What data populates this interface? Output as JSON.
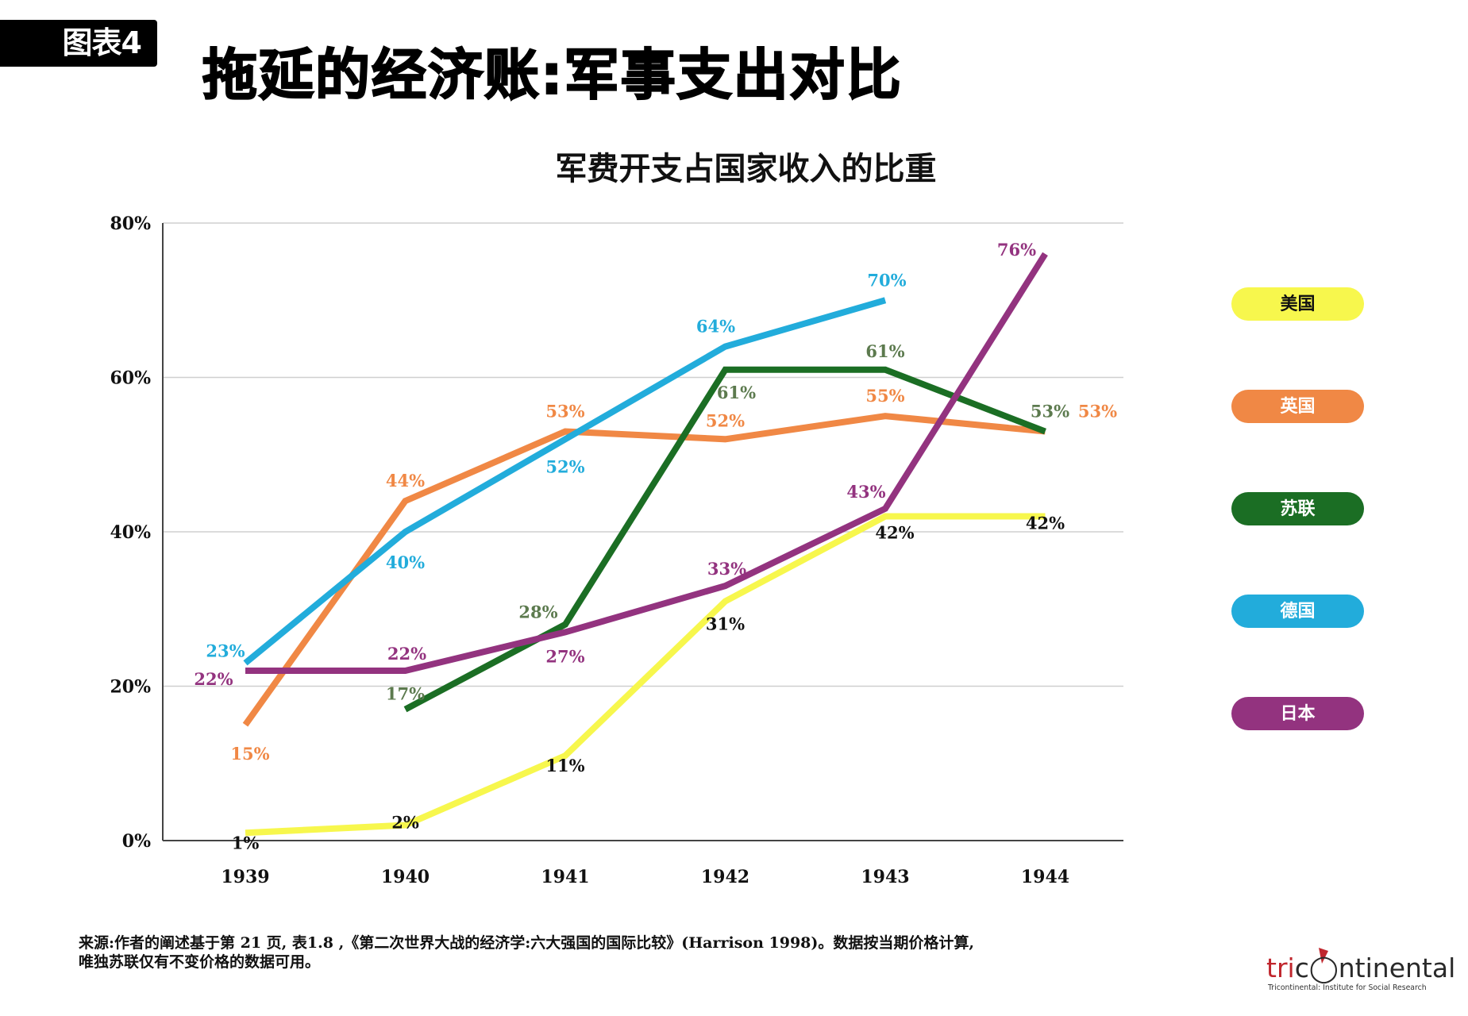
{
  "header": {
    "badge": "图表4",
    "title": "拖延的经济账:军事支出对比"
  },
  "chart_data": {
    "type": "line",
    "title": "军费开支占国家收入的比重",
    "xlabel": "",
    "ylabel": "",
    "categories": [
      "1939",
      "1940",
      "1941",
      "1942",
      "1943",
      "1944"
    ],
    "ylim": [
      0,
      80
    ],
    "yticks": [
      "0%",
      "20%",
      "40%",
      "60%",
      "80%"
    ],
    "ytick_values": [
      0,
      20,
      40,
      60,
      80
    ],
    "grid": true,
    "legend_position": "right",
    "series": [
      {
        "name": "美国",
        "color": "#f7f74d",
        "label_color": "#111111",
        "text_color": "#111111",
        "values": [
          1,
          2,
          11,
          31,
          42,
          42
        ],
        "labels": [
          "1%",
          "2%",
          "11%",
          "31%",
          "42%",
          "42%"
        ]
      },
      {
        "name": "英国",
        "color": "#f08845",
        "label_color": "#f08845",
        "text_color": "#ffffff",
        "values": [
          15,
          44,
          53,
          52,
          55,
          53
        ],
        "labels": [
          "15%",
          "44%",
          "53%",
          "52%",
          "55%",
          "53%"
        ]
      },
      {
        "name": "苏联",
        "color": "#1b6e24",
        "label_color": "#5c7a4e",
        "text_color": "#ffffff",
        "values": [
          null,
          17,
          28,
          61,
          61,
          53
        ],
        "labels": [
          null,
          "17%",
          "28%",
          "61%",
          "61%",
          "53%"
        ]
      },
      {
        "name": "德国",
        "color": "#22acdb",
        "label_color": "#22acdb",
        "text_color": "#ffffff",
        "values": [
          23,
          40,
          52,
          64,
          70,
          null
        ],
        "labels": [
          "23%",
          "40%",
          "52%",
          "64%",
          "70%",
          null
        ]
      },
      {
        "name": "日本",
        "color": "#93337f",
        "label_color": "#93337f",
        "text_color": "#ffffff",
        "values": [
          22,
          22,
          27,
          33,
          43,
          76
        ],
        "labels": [
          "22%",
          "22%",
          "27%",
          "33%",
          "43%",
          "76%"
        ]
      }
    ]
  },
  "footnote": {
    "line1": "来源:作者的阐述基于第 21 页, 表1.8 ,《第二次世界大战的经济学:六大强国的国际比较》(Harrison 1998)。数据按当期价格计算,",
    "line2": "唯独苏联仅有不变价格的数据可用。"
  },
  "logo": {
    "wordmark_tri": "tri",
    "wordmark_rest": "c◯ntinental",
    "tagline": "Tricontinental: Institute for Social Research"
  }
}
